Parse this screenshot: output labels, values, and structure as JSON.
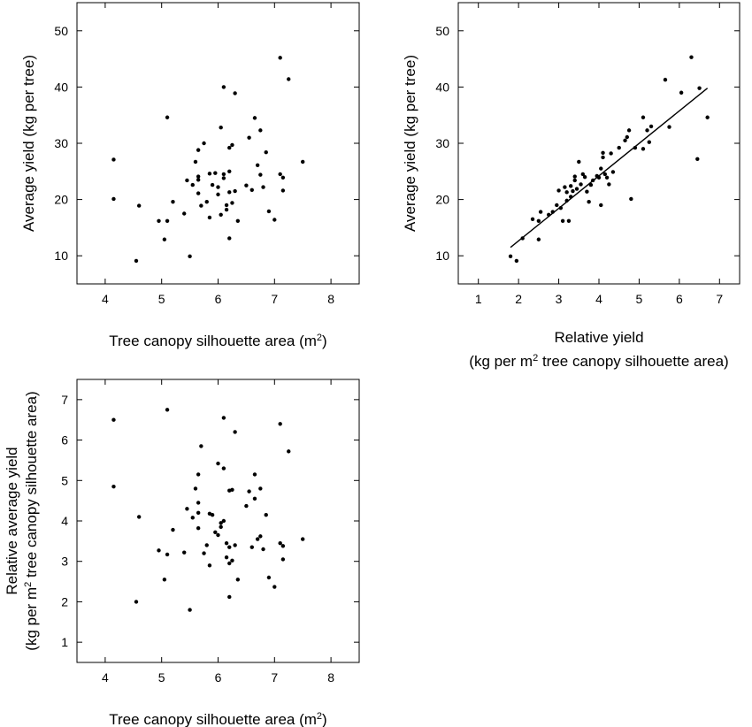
{
  "chart_data": [
    {
      "type": "scatter",
      "xlabel": "Tree canopy silhouette area (m",
      "xlabel_sup": "2",
      "xlabel_end": ")",
      "ylabel": "Average yield (kg per tree)",
      "xlim": [
        3.5,
        8.5
      ],
      "ylim": [
        5,
        55
      ],
      "xticks": [
        4,
        5,
        6,
        7,
        8
      ],
      "yticks": [
        10,
        20,
        30,
        40,
        50
      ],
      "grid": false,
      "points": [
        [
          4.15,
          27.1
        ],
        [
          4.15,
          20.1
        ],
        [
          4.55,
          9.1
        ],
        [
          4.6,
          18.9
        ],
        [
          4.95,
          16.2
        ],
        [
          5.05,
          12.9
        ],
        [
          5.1,
          16.2
        ],
        [
          5.1,
          34.6
        ],
        [
          5.2,
          19.6
        ],
        [
          5.4,
          17.5
        ],
        [
          5.45,
          23.4
        ],
        [
          5.5,
          9.9
        ],
        [
          5.55,
          22.6
        ],
        [
          5.6,
          26.7
        ],
        [
          5.65,
          21.1
        ],
        [
          5.65,
          23.5
        ],
        [
          5.65,
          24.1
        ],
        [
          5.65,
          28.8
        ],
        [
          5.7,
          18.9
        ],
        [
          5.75,
          30.0
        ],
        [
          5.8,
          19.6
        ],
        [
          5.85,
          24.6
        ],
        [
          5.85,
          16.8
        ],
        [
          5.9,
          22.6
        ],
        [
          5.95,
          24.7
        ],
        [
          6.0,
          20.9
        ],
        [
          6.0,
          22.2
        ],
        [
          6.05,
          32.8
        ],
        [
          6.05,
          17.3
        ],
        [
          6.1,
          23.8
        ],
        [
          6.1,
          40.0
        ],
        [
          6.1,
          24.5
        ],
        [
          6.15,
          19.0
        ],
        [
          6.15,
          18.2
        ],
        [
          6.2,
          21.3
        ],
        [
          6.2,
          25.0
        ],
        [
          6.2,
          29.2
        ],
        [
          6.2,
          13.1
        ],
        [
          6.25,
          29.7
        ],
        [
          6.25,
          19.4
        ],
        [
          6.3,
          38.9
        ],
        [
          6.3,
          21.5
        ],
        [
          6.35,
          16.2
        ],
        [
          6.5,
          22.5
        ],
        [
          6.55,
          31.0
        ],
        [
          6.6,
          21.7
        ],
        [
          6.65,
          34.5
        ],
        [
          6.7,
          26.1
        ],
        [
          6.75,
          24.4
        ],
        [
          6.75,
          32.3
        ],
        [
          6.8,
          22.2
        ],
        [
          6.85,
          28.4
        ],
        [
          6.9,
          17.9
        ],
        [
          7.0,
          16.4
        ],
        [
          7.1,
          45.2
        ],
        [
          7.1,
          24.5
        ],
        [
          7.15,
          23.9
        ],
        [
          7.15,
          21.6
        ],
        [
          7.25,
          41.4
        ],
        [
          7.5,
          26.7
        ]
      ]
    },
    {
      "type": "scatter",
      "xlabel": "Relative yield",
      "xlabel_line2_pre": "(kg per m",
      "xlabel_line2_sup": "2",
      "xlabel_line2_post": " tree canopy silhouette area)",
      "ylabel": "Average yield (kg per tree)",
      "xlim": [
        0.5,
        7.5
      ],
      "ylim": [
        5,
        55
      ],
      "xticks": [
        1,
        2,
        3,
        4,
        5,
        6,
        7
      ],
      "yticks": [
        10,
        20,
        30,
        40,
        50
      ],
      "grid": false,
      "fit_line": {
        "x": [
          1.8,
          6.7
        ],
        "y": [
          11.5,
          39.8
        ]
      },
      "points": [
        [
          1.8,
          9.9
        ],
        [
          1.95,
          9.1
        ],
        [
          2.1,
          13.1
        ],
        [
          2.35,
          16.5
        ],
        [
          2.5,
          12.9
        ],
        [
          2.5,
          16.2
        ],
        [
          2.55,
          17.8
        ],
        [
          2.75,
          17.3
        ],
        [
          2.85,
          17.8
        ],
        [
          2.95,
          19.0
        ],
        [
          3.0,
          21.6
        ],
        [
          3.05,
          18.5
        ],
        [
          3.1,
          16.2
        ],
        [
          3.15,
          22.2
        ],
        [
          3.2,
          19.8
        ],
        [
          3.2,
          21.3
        ],
        [
          3.25,
          16.2
        ],
        [
          3.3,
          20.5
        ],
        [
          3.3,
          22.4
        ],
        [
          3.35,
          21.5
        ],
        [
          3.4,
          23.4
        ],
        [
          3.4,
          24.1
        ],
        [
          3.45,
          21.9
        ],
        [
          3.5,
          26.7
        ],
        [
          3.55,
          22.7
        ],
        [
          3.6,
          24.5
        ],
        [
          3.65,
          24.0
        ],
        [
          3.7,
          21.4
        ],
        [
          3.75,
          19.6
        ],
        [
          3.8,
          22.6
        ],
        [
          3.85,
          23.4
        ],
        [
          3.95,
          24.2
        ],
        [
          4.0,
          23.9
        ],
        [
          4.05,
          19.0
        ],
        [
          4.05,
          25.5
        ],
        [
          4.1,
          27.5
        ],
        [
          4.1,
          28.3
        ],
        [
          4.15,
          24.5
        ],
        [
          4.2,
          23.9
        ],
        [
          4.25,
          22.7
        ],
        [
          4.3,
          28.2
        ],
        [
          4.35,
          24.9
        ],
        [
          4.5,
          29.2
        ],
        [
          4.65,
          30.5
        ],
        [
          4.7,
          31.1
        ],
        [
          4.75,
          32.3
        ],
        [
          4.8,
          20.1
        ],
        [
          4.9,
          29.2
        ],
        [
          5.1,
          29.0
        ],
        [
          5.1,
          34.6
        ],
        [
          5.2,
          32.3
        ],
        [
          5.25,
          30.2
        ],
        [
          5.3,
          33.0
        ],
        [
          5.65,
          41.3
        ],
        [
          5.75,
          32.9
        ],
        [
          6.05,
          39.0
        ],
        [
          6.3,
          45.3
        ],
        [
          6.45,
          27.2
        ],
        [
          6.5,
          39.8
        ],
        [
          6.7,
          34.6
        ]
      ]
    },
    {
      "type": "scatter",
      "xlabel": "Tree canopy silhouette area (m",
      "xlabel_sup": "2",
      "xlabel_end": ")",
      "ylabel": "Relative average yield",
      "ylabel_line2_pre": "(kg per m",
      "ylabel_line2_sup": "2",
      "ylabel_line2_post": " tree canopy silhouette area)",
      "xlim": [
        3.5,
        8.5
      ],
      "ylim": [
        0.5,
        7.5
      ],
      "xticks": [
        4,
        5,
        6,
        7,
        8
      ],
      "yticks": [
        1,
        2,
        3,
        4,
        5,
        6,
        7
      ],
      "grid": false,
      "points": [
        [
          4.15,
          6.5
        ],
        [
          4.15,
          4.85
        ],
        [
          4.55,
          2.0
        ],
        [
          4.6,
          4.1
        ],
        [
          4.95,
          3.27
        ],
        [
          5.05,
          2.55
        ],
        [
          5.1,
          3.17
        ],
        [
          5.1,
          6.75
        ],
        [
          5.2,
          3.78
        ],
        [
          5.4,
          3.22
        ],
        [
          5.45,
          4.3
        ],
        [
          5.5,
          1.8
        ],
        [
          5.55,
          4.08
        ],
        [
          5.6,
          4.8
        ],
        [
          5.65,
          3.82
        ],
        [
          5.65,
          4.2
        ],
        [
          5.65,
          4.45
        ],
        [
          5.65,
          5.15
        ],
        [
          5.7,
          5.85
        ],
        [
          5.75,
          3.2
        ],
        [
          5.8,
          3.4
        ],
        [
          5.85,
          4.18
        ],
        [
          5.85,
          2.9
        ],
        [
          5.9,
          4.15
        ],
        [
          5.95,
          3.72
        ],
        [
          6.0,
          3.65
        ],
        [
          6.0,
          5.42
        ],
        [
          6.05,
          3.95
        ],
        [
          6.05,
          3.85
        ],
        [
          6.1,
          5.3
        ],
        [
          6.1,
          6.55
        ],
        [
          6.1,
          4.0
        ],
        [
          6.15,
          3.1
        ],
        [
          6.15,
          3.45
        ],
        [
          6.2,
          3.35
        ],
        [
          6.2,
          4.75
        ],
        [
          6.2,
          2.12
        ],
        [
          6.2,
          2.95
        ],
        [
          6.25,
          4.77
        ],
        [
          6.25,
          3.02
        ],
        [
          6.3,
          6.2
        ],
        [
          6.3,
          3.4
        ],
        [
          6.35,
          2.55
        ],
        [
          6.5,
          4.37
        ],
        [
          6.55,
          4.73
        ],
        [
          6.6,
          3.35
        ],
        [
          6.65,
          5.15
        ],
        [
          6.65,
          4.55
        ],
        [
          6.7,
          3.55
        ],
        [
          6.75,
          4.8
        ],
        [
          6.75,
          3.62
        ],
        [
          6.8,
          3.3
        ],
        [
          6.85,
          4.15
        ],
        [
          6.9,
          2.6
        ],
        [
          7.0,
          2.37
        ],
        [
          7.1,
          6.4
        ],
        [
          7.1,
          3.45
        ],
        [
          7.15,
          3.05
        ],
        [
          7.15,
          3.38
        ],
        [
          7.25,
          5.72
        ],
        [
          7.5,
          3.55
        ]
      ]
    }
  ]
}
